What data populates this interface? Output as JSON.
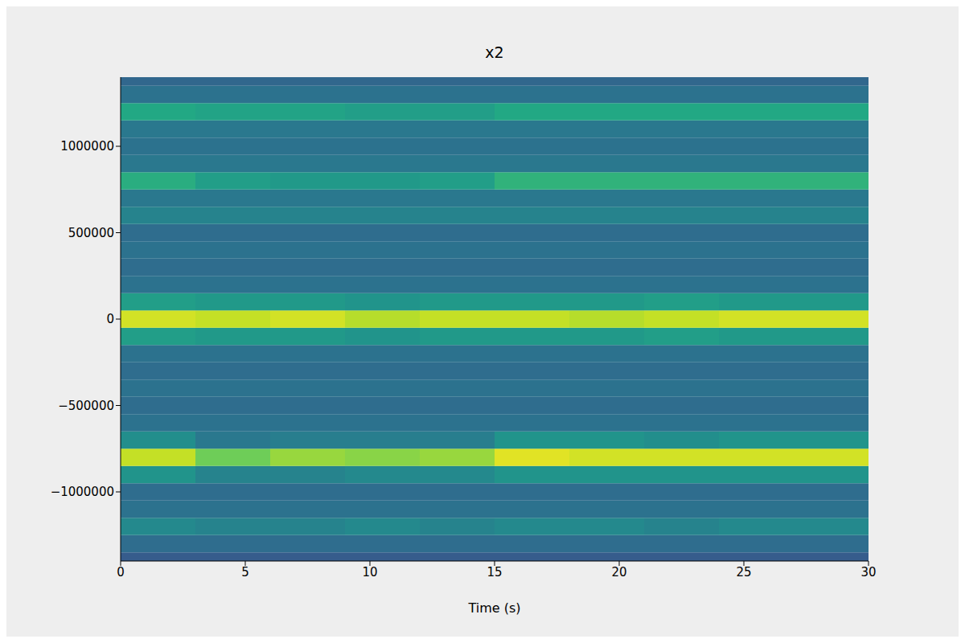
{
  "chart_data": {
    "type": "heatmap",
    "title": "x2",
    "x_label": "Time (s)",
    "xlim": [
      0,
      30
    ],
    "xticks": [
      0,
      5,
      10,
      15,
      20,
      25,
      30
    ],
    "ylim": [
      -1400000,
      1400000
    ],
    "yticks": [
      {
        "value": -1000000,
        "label": "−1000000"
      },
      {
        "value": -500000,
        "label": "−500000"
      },
      0,
      500000,
      1000000
    ],
    "zlim": [
      -75,
      -30
    ],
    "x": [
      1.5,
      4.5,
      7.5,
      10.5,
      13.5,
      16.5,
      19.5,
      22.5,
      25.5,
      28.5
    ],
    "y": [
      -1400000,
      -1300000,
      -1200000,
      -1100000,
      -1000000,
      -900000,
      -800000,
      -700000,
      -600000,
      -500000,
      -400000,
      -300000,
      -200000,
      -100000,
      0,
      100000,
      200000,
      300000,
      400000,
      500000,
      600000,
      700000,
      800000,
      900000,
      1000000,
      1100000,
      1200000,
      1300000,
      1400000
    ],
    "cells": [
      [
        -62,
        -62,
        -62,
        -62,
        -62,
        -62,
        -62,
        -62,
        -62,
        -62
      ],
      [
        -59,
        -59,
        -59,
        -59,
        -59,
        -59,
        -59,
        -59,
        -59,
        -59
      ],
      [
        -54,
        -55,
        -55,
        -54,
        -55,
        -54,
        -54,
        -55,
        -54,
        -54
      ],
      [
        -58,
        -58,
        -58,
        -58,
        -58,
        -58,
        -58,
        -58,
        -58,
        -58
      ],
      [
        -59,
        -59,
        -59,
        -59,
        -59,
        -59,
        -59,
        -59,
        -59,
        -59
      ],
      [
        -52,
        -55,
        -55,
        -54,
        -54,
        -52,
        -52,
        -52,
        -52,
        -52
      ],
      [
        -34,
        -40,
        -37,
        -38,
        -37,
        -32,
        -33,
        -33,
        -33,
        -33
      ],
      [
        -53,
        -57,
        -56,
        -56,
        -56,
        -52,
        -52,
        -53,
        -52,
        -52
      ],
      [
        -58,
        -58,
        -58,
        -58,
        -58,
        -58,
        -58,
        -58,
        -58,
        -58
      ],
      [
        -59,
        -59,
        -59,
        -59,
        -59,
        -59,
        -59,
        -59,
        -59,
        -59
      ],
      [
        -58,
        -58,
        -58,
        -58,
        -58,
        -58,
        -58,
        -58,
        -58,
        -58
      ],
      [
        -59,
        -59,
        -59,
        -59,
        -59,
        -59,
        -59,
        -59,
        -59,
        -59
      ],
      [
        -58,
        -58,
        -58,
        -58,
        -58,
        -58,
        -58,
        -58,
        -58,
        -58
      ],
      [
        -50,
        -51,
        -51,
        -52,
        -51,
        -51,
        -51,
        -50,
        -51,
        -51
      ],
      [
        -33,
        -34,
        -33,
        -35,
        -34,
        -34,
        -35,
        -34,
        -33,
        -33
      ],
      [
        -50,
        -51,
        -51,
        -52,
        -51,
        -51,
        -51,
        -50,
        -51,
        -51
      ],
      [
        -58,
        -58,
        -58,
        -58,
        -58,
        -58,
        -58,
        -58,
        -58,
        -58
      ],
      [
        -59,
        -59,
        -59,
        -59,
        -59,
        -59,
        -59,
        -59,
        -59,
        -59
      ],
      [
        -58,
        -58,
        -58,
        -58,
        -58,
        -58,
        -58,
        -58,
        -58,
        -58
      ],
      [
        -59,
        -59,
        -59,
        -59,
        -59,
        -59,
        -59,
        -59,
        -59,
        -59
      ],
      [
        -55,
        -55,
        -55,
        -55,
        -55,
        -55,
        -55,
        -55,
        -55,
        -55
      ],
      [
        -57,
        -57,
        -57,
        -57,
        -57,
        -57,
        -57,
        -57,
        -57,
        -57
      ],
      [
        -47,
        -50,
        -51,
        -51,
        -50,
        -46,
        -46,
        -46,
        -46,
        -46
      ],
      [
        -57,
        -57,
        -57,
        -57,
        -57,
        -57,
        -57,
        -57,
        -57,
        -57
      ],
      [
        -58,
        -58,
        -58,
        -58,
        -58,
        -58,
        -58,
        -58,
        -58,
        -58
      ],
      [
        -57,
        -57,
        -57,
        -57,
        -57,
        -57,
        -57,
        -57,
        -57,
        -57
      ],
      [
        -48,
        -49,
        -49,
        -50,
        -50,
        -48,
        -48,
        -48,
        -48,
        -48
      ],
      [
        -58,
        -58,
        -58,
        -58,
        -58,
        -58,
        -58,
        -58,
        -58,
        -58
      ],
      [
        -60,
        -60,
        -60,
        -60,
        -60,
        -60,
        -60,
        -60,
        -60,
        -60
      ]
    ]
  }
}
